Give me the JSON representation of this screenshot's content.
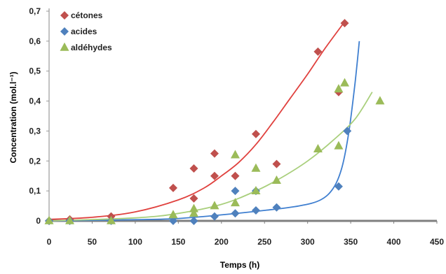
{
  "chart_data": {
    "type": "scatter",
    "xlabel": "Temps (h)",
    "ylabel": "Concentration (mol.l⁻¹)",
    "xlim": [
      0,
      450
    ],
    "ylim": [
      0,
      0.7
    ],
    "x_ticks": [
      "0",
      "50",
      "100",
      "150",
      "200",
      "250",
      "300",
      "350",
      "400",
      "450"
    ],
    "y_ticks": [
      "0",
      "0,1",
      "0,2",
      "0,3",
      "0,4",
      "0,5",
      "0,6",
      "0,7"
    ],
    "legend_position": "top-left",
    "grid": false,
    "series": [
      {
        "name": "cétones",
        "marker": "diamond",
        "color": "#c0504d",
        "trend_color": "#e0413e",
        "points": [
          [
            0,
            0.0
          ],
          [
            24,
            0.005
          ],
          [
            72,
            0.015
          ],
          [
            144,
            0.11
          ],
          [
            168,
            0.175
          ],
          [
            168,
            0.075
          ],
          [
            192,
            0.225
          ],
          [
            192,
            0.15
          ],
          [
            216,
            0.15
          ],
          [
            240,
            0.29
          ],
          [
            264,
            0.19
          ],
          [
            312,
            0.565
          ],
          [
            336,
            0.43
          ],
          [
            343,
            0.66
          ]
        ],
        "trend": [
          [
            0,
            0.005
          ],
          [
            50,
            0.012
          ],
          [
            100,
            0.03
          ],
          [
            150,
            0.07
          ],
          [
            180,
            0.11
          ],
          [
            200,
            0.15
          ],
          [
            220,
            0.195
          ],
          [
            240,
            0.255
          ],
          [
            260,
            0.33
          ],
          [
            280,
            0.41
          ],
          [
            300,
            0.49
          ],
          [
            320,
            0.575
          ],
          [
            343,
            0.665
          ]
        ]
      },
      {
        "name": "acides",
        "marker": "diamond",
        "color": "#4f81bd",
        "trend_color": "#3f7fd0",
        "points": [
          [
            0,
            0.0
          ],
          [
            24,
            0.0
          ],
          [
            72,
            0.0
          ],
          [
            144,
            0.0
          ],
          [
            168,
            0.0
          ],
          [
            192,
            0.015
          ],
          [
            216,
            0.025
          ],
          [
            216,
            0.1
          ],
          [
            240,
            0.035
          ],
          [
            240,
            0.1
          ],
          [
            264,
            0.045
          ],
          [
            336,
            0.115
          ],
          [
            346,
            0.3
          ]
        ],
        "trend": [
          [
            0,
            0.0
          ],
          [
            100,
            0.004
          ],
          [
            150,
            0.008
          ],
          [
            200,
            0.02
          ],
          [
            250,
            0.035
          ],
          [
            290,
            0.05
          ],
          [
            315,
            0.07
          ],
          [
            330,
            0.11
          ],
          [
            340,
            0.18
          ],
          [
            348,
            0.3
          ],
          [
            355,
            0.46
          ],
          [
            360,
            0.6
          ]
        ]
      },
      {
        "name": "aldéhydes",
        "marker": "triangle",
        "color": "#9bbb59",
        "trend_color": "#a9cf7c",
        "points": [
          [
            0,
            0.0
          ],
          [
            24,
            0.0
          ],
          [
            72,
            0.0
          ],
          [
            144,
            0.02
          ],
          [
            168,
            0.025
          ],
          [
            168,
            0.04
          ],
          [
            192,
            0.05
          ],
          [
            216,
            0.06
          ],
          [
            216,
            0.22
          ],
          [
            240,
            0.1
          ],
          [
            240,
            0.175
          ],
          [
            264,
            0.135
          ],
          [
            312,
            0.24
          ],
          [
            336,
            0.25
          ],
          [
            336,
            0.44
          ],
          [
            343,
            0.46
          ],
          [
            384,
            0.4
          ]
        ],
        "trend": [
          [
            0,
            0.0
          ],
          [
            100,
            0.01
          ],
          [
            150,
            0.025
          ],
          [
            200,
            0.055
          ],
          [
            240,
            0.1
          ],
          [
            270,
            0.145
          ],
          [
            300,
            0.2
          ],
          [
            330,
            0.27
          ],
          [
            355,
            0.34
          ],
          [
            375,
            0.43
          ]
        ]
      }
    ]
  }
}
